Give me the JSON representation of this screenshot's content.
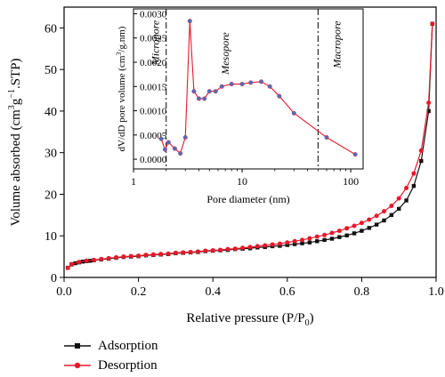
{
  "chart_data": [
    {
      "type": "line",
      "xlabel": "Relative pressure (P/P0)",
      "ylabel": "Volume absorbed (cm3g−1.STP)",
      "xlim": [
        0,
        1.0
      ],
      "ylim": [
        0,
        65
      ],
      "x_ticks": [
        "0.0",
        "0.2",
        "0.4",
        "0.6",
        "0.8",
        "1.0"
      ],
      "y_ticks": [
        "0",
        "10",
        "20",
        "30",
        "40",
        "50",
        "60"
      ],
      "grid": false,
      "legend_position": "bottom-left, below plot",
      "series": [
        {
          "name": "Adsorption",
          "color": "#111111",
          "marker": "square",
          "x": [
            0.01,
            0.02,
            0.03,
            0.04,
            0.05,
            0.06,
            0.07,
            0.08,
            0.1,
            0.12,
            0.14,
            0.16,
            0.18,
            0.2,
            0.22,
            0.24,
            0.26,
            0.28,
            0.3,
            0.32,
            0.34,
            0.36,
            0.38,
            0.4,
            0.42,
            0.44,
            0.46,
            0.48,
            0.5,
            0.52,
            0.54,
            0.56,
            0.58,
            0.6,
            0.62,
            0.64,
            0.66,
            0.68,
            0.7,
            0.72,
            0.74,
            0.76,
            0.78,
            0.8,
            0.82,
            0.84,
            0.86,
            0.88,
            0.9,
            0.92,
            0.94,
            0.96,
            0.98,
            0.99
          ],
          "y": [
            2.3,
            3.1,
            3.4,
            3.6,
            3.8,
            3.9,
            4.0,
            4.1,
            4.3,
            4.5,
            4.7,
            4.9,
            5.0,
            5.1,
            5.3,
            5.4,
            5.5,
            5.6,
            5.8,
            5.9,
            6.0,
            6.1,
            6.3,
            6.4,
            6.5,
            6.6,
            6.8,
            6.9,
            7.0,
            7.2,
            7.3,
            7.5,
            7.6,
            7.8,
            8.0,
            8.2,
            8.4,
            8.7,
            9.0,
            9.3,
            9.7,
            10.1,
            10.6,
            11.2,
            11.9,
            12.7,
            13.7,
            15.0,
            16.5,
            18.5,
            22.0,
            28.0,
            40.0,
            61.0
          ]
        },
        {
          "name": "Desorption",
          "color": "#e8182a",
          "marker": "circle",
          "x": [
            0.01,
            0.02,
            0.04,
            0.06,
            0.08,
            0.1,
            0.12,
            0.14,
            0.16,
            0.18,
            0.2,
            0.22,
            0.24,
            0.26,
            0.28,
            0.3,
            0.32,
            0.34,
            0.36,
            0.38,
            0.4,
            0.42,
            0.44,
            0.46,
            0.48,
            0.5,
            0.52,
            0.54,
            0.56,
            0.58,
            0.6,
            0.62,
            0.64,
            0.66,
            0.68,
            0.7,
            0.72,
            0.74,
            0.76,
            0.78,
            0.8,
            0.82,
            0.84,
            0.86,
            0.88,
            0.9,
            0.92,
            0.94,
            0.96,
            0.98,
            0.99
          ],
          "y": [
            2.3,
            3.2,
            3.7,
            4.0,
            4.2,
            4.4,
            4.6,
            4.8,
            5.0,
            5.1,
            5.2,
            5.4,
            5.5,
            5.6,
            5.7,
            5.9,
            6.0,
            6.1,
            6.2,
            6.4,
            6.5,
            6.6,
            6.8,
            6.9,
            7.1,
            7.3,
            7.5,
            7.7,
            7.9,
            8.1,
            8.4,
            8.7,
            9.0,
            9.4,
            9.8,
            10.2,
            10.7,
            11.2,
            11.8,
            12.4,
            13.1,
            13.9,
            14.8,
            15.9,
            17.2,
            19.0,
            21.5,
            25.0,
            30.5,
            42.0,
            61.0
          ]
        }
      ]
    },
    {
      "type": "line",
      "xlabel": "Pore diameter (nm)",
      "ylabel": "dV/dD pore volume (cm3/g.nm)",
      "x_scale": "log",
      "xlim": [
        1,
        130
      ],
      "ylim": [
        -0.0002,
        0.0031
      ],
      "x_ticks": [
        "1",
        "10",
        "100"
      ],
      "y_ticks": [
        "0.0000",
        "0.0005",
        "0.0010",
        "0.0015",
        "0.0020",
        "0.0025",
        "0.0030"
      ],
      "grid": false,
      "region_dividers_nm": [
        2,
        50
      ],
      "region_labels": [
        "Micropore",
        "Mesopore",
        "Macropore"
      ],
      "series": [
        {
          "color": "#e8182a",
          "marker": "circle",
          "marker_fill": "#4a6fbf",
          "x": [
            1.8,
            1.95,
            2.1,
            2.4,
            2.7,
            3.0,
            3.3,
            3.6,
            4.0,
            4.5,
            5.0,
            5.7,
            6.5,
            8.0,
            10.0,
            12.0,
            15.0,
            18.0,
            22.0,
            30.0,
            60.0,
            110.0
          ],
          "y": [
            0.00042,
            0.0002,
            0.00035,
            0.00022,
            0.00012,
            0.00045,
            0.00285,
            0.0014,
            0.00125,
            0.00125,
            0.0014,
            0.0014,
            0.0015,
            0.00155,
            0.00155,
            0.00158,
            0.0016,
            0.0015,
            0.0013,
            0.00095,
            0.00045,
            0.0001
          ]
        }
      ]
    }
  ]
}
